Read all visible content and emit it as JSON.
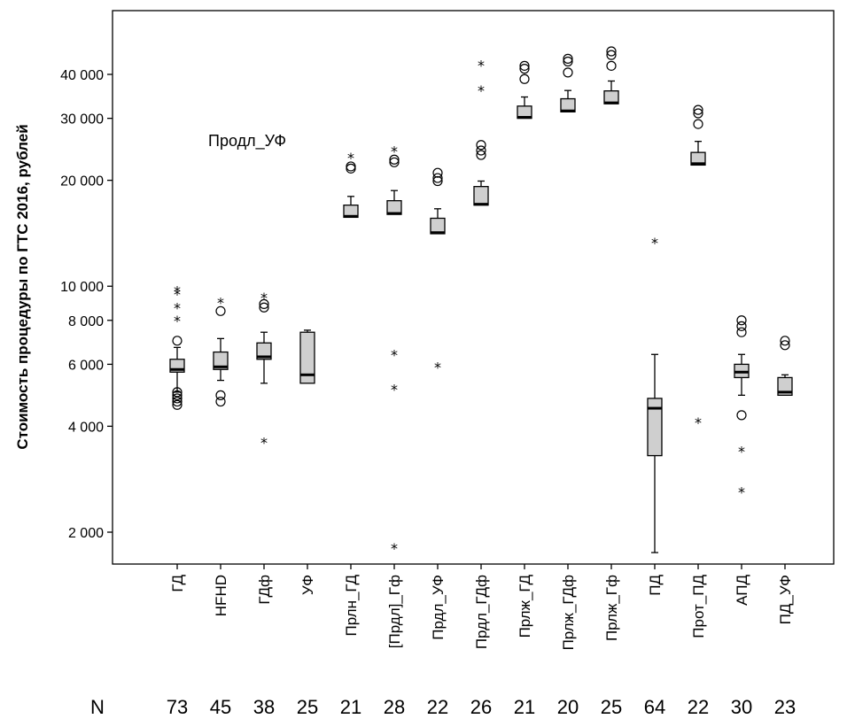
{
  "chart_data": {
    "type": "box",
    "ylabel": "Стоимость процедуры по ГТС 2016, рублей",
    "yscale": "log",
    "ylim": [
      1500,
      52000
    ],
    "yticks": [
      {
        "value": 2000,
        "label": "2 000"
      },
      {
        "value": 4000,
        "label": "4 000"
      },
      {
        "value": 6000,
        "label": "6 000"
      },
      {
        "value": 8000,
        "label": "8 000"
      },
      {
        "value": 10000,
        "label": "10 000"
      },
      {
        "value": 20000,
        "label": "20 000"
      },
      {
        "value": 30000,
        "label": "30 000"
      },
      {
        "value": 40000,
        "label": "40 000"
      }
    ],
    "annotation": "Продл_УФ",
    "n_header": "N",
    "categories": [
      "ГД",
      "HFHD",
      "ГДф",
      "УФ",
      "Прлн_ГД",
      "[Прдл]_Гф",
      "Прдл_УФ",
      "Прдл_ГДф",
      "Прлж_ГД",
      "Прлж_ГДф",
      "Прлж_Гф",
      "ПД",
      "Прот_ПД",
      "АПД",
      "ПД_УФ"
    ],
    "n": [
      "73",
      "45",
      "38",
      "25",
      "21",
      "28",
      "22",
      "26",
      "21",
      "20",
      "25",
      "64",
      "22",
      "30",
      "23"
    ],
    "boxes": [
      {
        "q1": 5700,
        "median": 5800,
        "q3": 6200,
        "whisker_low": 5000,
        "whisker_high": 6700,
        "outliers": [
          7000,
          5000,
          4900,
          4800,
          4700,
          4600
        ],
        "extremes": [
          9700,
          9500,
          8700,
          8000
        ]
      },
      {
        "q1": 5800,
        "median": 5900,
        "q3": 6500,
        "whisker_low": 5400,
        "whisker_high": 7100,
        "outliers": [
          8500,
          4900,
          4700
        ],
        "extremes": [
          9000
        ]
      },
      {
        "q1": 6200,
        "median": 6300,
        "q3": 6900,
        "whisker_low": 5300,
        "whisker_high": 7400,
        "outliers": [
          8700,
          8900
        ],
        "extremes": [
          9300,
          3600
        ]
      },
      {
        "q1": 5300,
        "median": 5600,
        "q3": 7400,
        "whisker_low": 5300,
        "whisker_high": 7500,
        "outliers": [],
        "extremes": []
      },
      {
        "q1": 15700,
        "median": 15800,
        "q3": 17000,
        "whisker_low": 15700,
        "whisker_high": 18000,
        "outliers": [
          21600,
          21900
        ],
        "extremes": [
          23200
        ]
      },
      {
        "q1": 16000,
        "median": 16100,
        "q3": 17500,
        "whisker_low": 16000,
        "whisker_high": 18700,
        "outliers": [
          22500,
          22900
        ],
        "extremes": [
          24200,
          6400,
          5100,
          1800
        ]
      },
      {
        "q1": 14100,
        "median": 14200,
        "q3": 15600,
        "whisker_low": 14100,
        "whisker_high": 16600,
        "outliers": [
          19900,
          20300,
          21000
        ],
        "extremes": [
          5900
        ]
      },
      {
        "q1": 17000,
        "median": 17100,
        "q3": 19200,
        "whisker_low": 17000,
        "whisker_high": 19900,
        "outliers": [
          23600,
          24300,
          25200
        ],
        "extremes": [
          42500,
          36000
        ]
      },
      {
        "q1": 30000,
        "median": 30200,
        "q3": 32500,
        "whisker_low": 30000,
        "whisker_high": 34500,
        "outliers": [
          38800,
          41500,
          42300
        ],
        "extremes": []
      },
      {
        "q1": 31300,
        "median": 31500,
        "q3": 34100,
        "whisker_low": 31300,
        "whisker_high": 36000,
        "outliers": [
          40500,
          43500,
          44300
        ],
        "extremes": []
      },
      {
        "q1": 33000,
        "median": 33200,
        "q3": 35900,
        "whisker_low": 33000,
        "whisker_high": 38300,
        "outliers": [
          42300,
          45400,
          46500
        ],
        "extremes": []
      },
      {
        "q1": 3300,
        "median": 4500,
        "q3": 4800,
        "whisker_low": 1750,
        "whisker_high": 6400,
        "outliers": [],
        "extremes": [
          13300
        ]
      },
      {
        "q1": 22100,
        "median": 22300,
        "q3": 24000,
        "whisker_low": 22100,
        "whisker_high": 25800,
        "outliers": [
          28900,
          31000,
          31700
        ],
        "extremes": [
          4100
        ]
      },
      {
        "q1": 5500,
        "median": 5700,
        "q3": 6000,
        "whisker_low": 4900,
        "whisker_high": 6400,
        "outliers": [
          7400,
          7700,
          8000,
          4300
        ],
        "extremes": [
          3400,
          2600
        ]
      },
      {
        "q1": 4900,
        "median": 5000,
        "q3": 5500,
        "whisker_low": 4900,
        "whisker_high": 5600,
        "outliers": [
          6800,
          7000
        ],
        "extremes": []
      }
    ]
  }
}
